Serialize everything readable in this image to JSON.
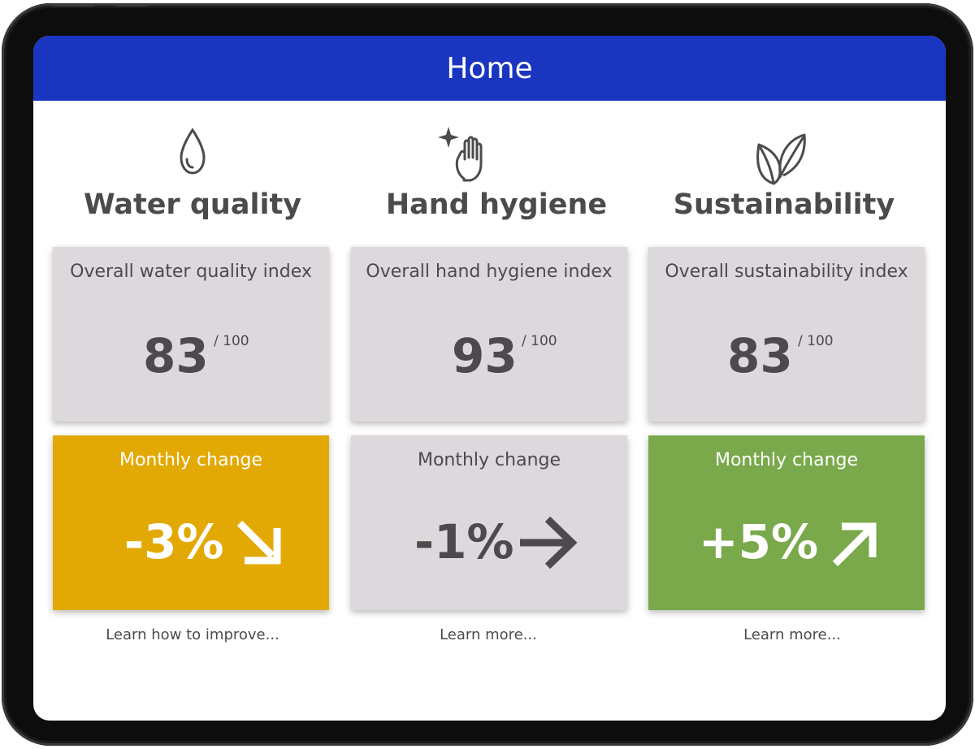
{
  "header": {
    "title": "Home"
  },
  "colors": {
    "header_bg": "#1a35c0",
    "card_grey": "#dcd8dc",
    "warning_yellow": "#e2a904",
    "success_green": "#79a94b",
    "text_dark": "#4d4a4d"
  },
  "sections": [
    {
      "title": "Water quality",
      "icon": "water-drop-icon",
      "index_label": "Overall water quality index",
      "score": "83",
      "score_max": "/ 100",
      "change_label": "Monthly change",
      "change_value": "-3%",
      "trend_icon": "arrow-down-right-icon",
      "link": "Learn how to improve..."
    },
    {
      "title": "Hand hygiene",
      "icon": "hand-sparkle-icon",
      "index_label": "Overall hand hygiene index",
      "score": "93",
      "score_max": "/ 100",
      "change_label": "Monthly change",
      "change_value": "-1%",
      "trend_icon": "arrow-right-icon",
      "link": "Learn more..."
    },
    {
      "title": "Sustainability",
      "icon": "leaves-icon",
      "index_label": "Overall sustainability index",
      "score": "83",
      "score_max": "/ 100",
      "change_label": "Monthly change",
      "change_value": "+5%",
      "trend_icon": "arrow-up-right-icon",
      "link": "Learn more..."
    }
  ]
}
